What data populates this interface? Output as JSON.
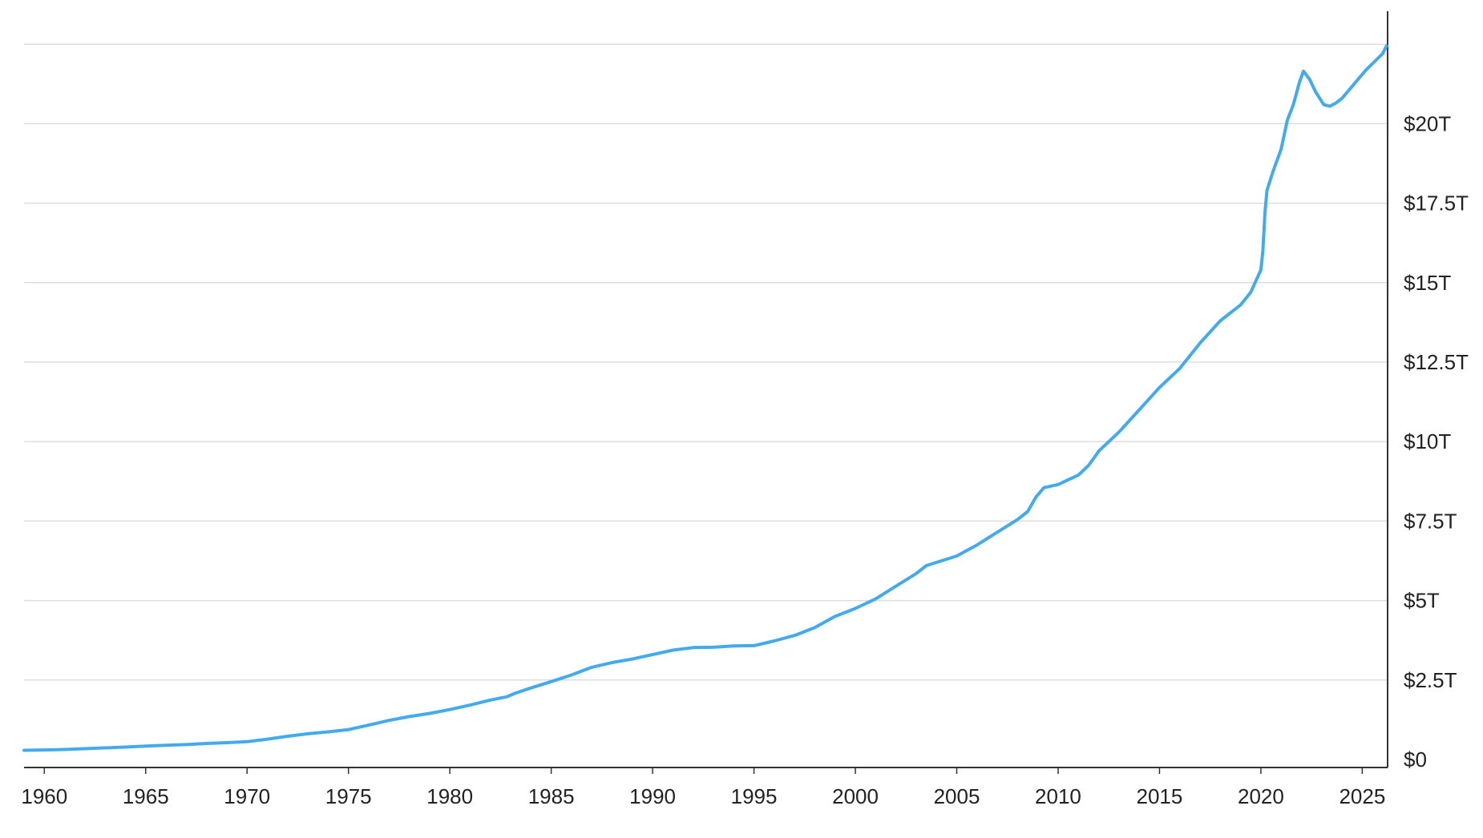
{
  "chart_data": {
    "type": "line",
    "title": "",
    "xlabel": "",
    "ylabel": "",
    "xlim": [
      1959,
      2026.25
    ],
    "ylim": [
      0,
      22500000000000
    ],
    "grid": true,
    "y_axis_position": "right",
    "x_ticks": [
      1960,
      1965,
      1970,
      1975,
      1980,
      1985,
      1990,
      1995,
      2000,
      2005,
      2010,
      2015,
      2020,
      2025
    ],
    "x_tick_labels": [
      "1960",
      "1965",
      "1970",
      "1975",
      "1980",
      "1985",
      "1990",
      "1995",
      "2000",
      "2005",
      "2010",
      "2015",
      "2020",
      "2025"
    ],
    "y_ticks": [
      0,
      2500000000000,
      5000000000000,
      7500000000000,
      10000000000000,
      12500000000000,
      15000000000000,
      17500000000000,
      20000000000000,
      22500000000000
    ],
    "y_tick_labels": [
      "$0",
      "$2.5T",
      "$5T",
      "$7.5T",
      "$10T",
      "$12.5T",
      "$15T",
      "$17.5T",
      "$20T",
      ""
    ],
    "series": [
      {
        "color": "#44aaee",
        "x": [
          1959,
          1960,
          1961,
          1962,
          1963,
          1964,
          1965,
          1966,
          1967,
          1968,
          1969,
          1970,
          1971,
          1972,
          1973,
          1974,
          1975,
          1976,
          1977,
          1978,
          1979,
          1980,
          1981,
          1982,
          1982.8,
          1983.2,
          1984,
          1985,
          1986,
          1987,
          1988,
          1989,
          1990,
          1991,
          1992,
          1993,
          1994,
          1995,
          1996,
          1997,
          1998,
          1999,
          2000,
          2001,
          2002,
          2003,
          2003.5,
          2004,
          2005,
          2006,
          2007,
          2008,
          2008.5,
          2008.9,
          2009.3,
          2010,
          2011,
          2011.5,
          2011.9,
          2012,
          2013,
          2014,
          2015,
          2016,
          2017,
          2018,
          2019,
          2019.5,
          2020,
          2020.1,
          2020.2,
          2020.3,
          2020.6,
          2021,
          2021.3,
          2021.6,
          2021.9,
          2022.1,
          2022.4,
          2022.7,
          2022.9,
          2023.1,
          2023.4,
          2023.7,
          2024,
          2024.4,
          2024.8,
          2025.2,
          2025.6,
          2026,
          2026.2
        ],
        "values": [
          290000000000,
          300000000000,
          315000000000,
          340000000000,
          365000000000,
          390000000000,
          420000000000,
          445000000000,
          470000000000,
          505000000000,
          530000000000,
          560000000000,
          640000000000,
          730000000000,
          810000000000,
          870000000000,
          940000000000,
          1080000000000,
          1230000000000,
          1350000000000,
          1450000000000,
          1570000000000,
          1710000000000,
          1870000000000,
          1970000000000,
          2080000000000,
          2250000000000,
          2450000000000,
          2660000000000,
          2900000000000,
          3050000000000,
          3160000000000,
          3300000000000,
          3440000000000,
          3520000000000,
          3530000000000,
          3570000000000,
          3580000000000,
          3730000000000,
          3900000000000,
          4150000000000,
          4500000000000,
          4750000000000,
          5050000000000,
          5450000000000,
          5850000000000,
          6100000000000,
          6200000000000,
          6400000000000,
          6750000000000,
          7150000000000,
          7550000000000,
          7800000000000,
          8250000000000,
          8550000000000,
          8650000000000,
          8950000000000,
          9250000000000,
          9600000000000,
          9700000000000,
          10300000000000,
          11000000000000,
          11700000000000,
          12300000000000,
          13100000000000,
          13800000000000,
          14300000000000,
          14700000000000,
          15400000000000,
          16000000000000,
          17200000000000,
          17900000000000,
          18500000000000,
          19200000000000,
          20100000000000,
          20600000000000,
          21300000000000,
          21650000000000,
          21400000000000,
          21000000000000,
          20800000000000,
          20600000000000,
          20550000000000,
          20650000000000,
          20800000000000,
          21100000000000,
          21400000000000,
          21700000000000,
          21950000000000,
          22200000000000,
          22450000000000
        ]
      }
    ]
  }
}
